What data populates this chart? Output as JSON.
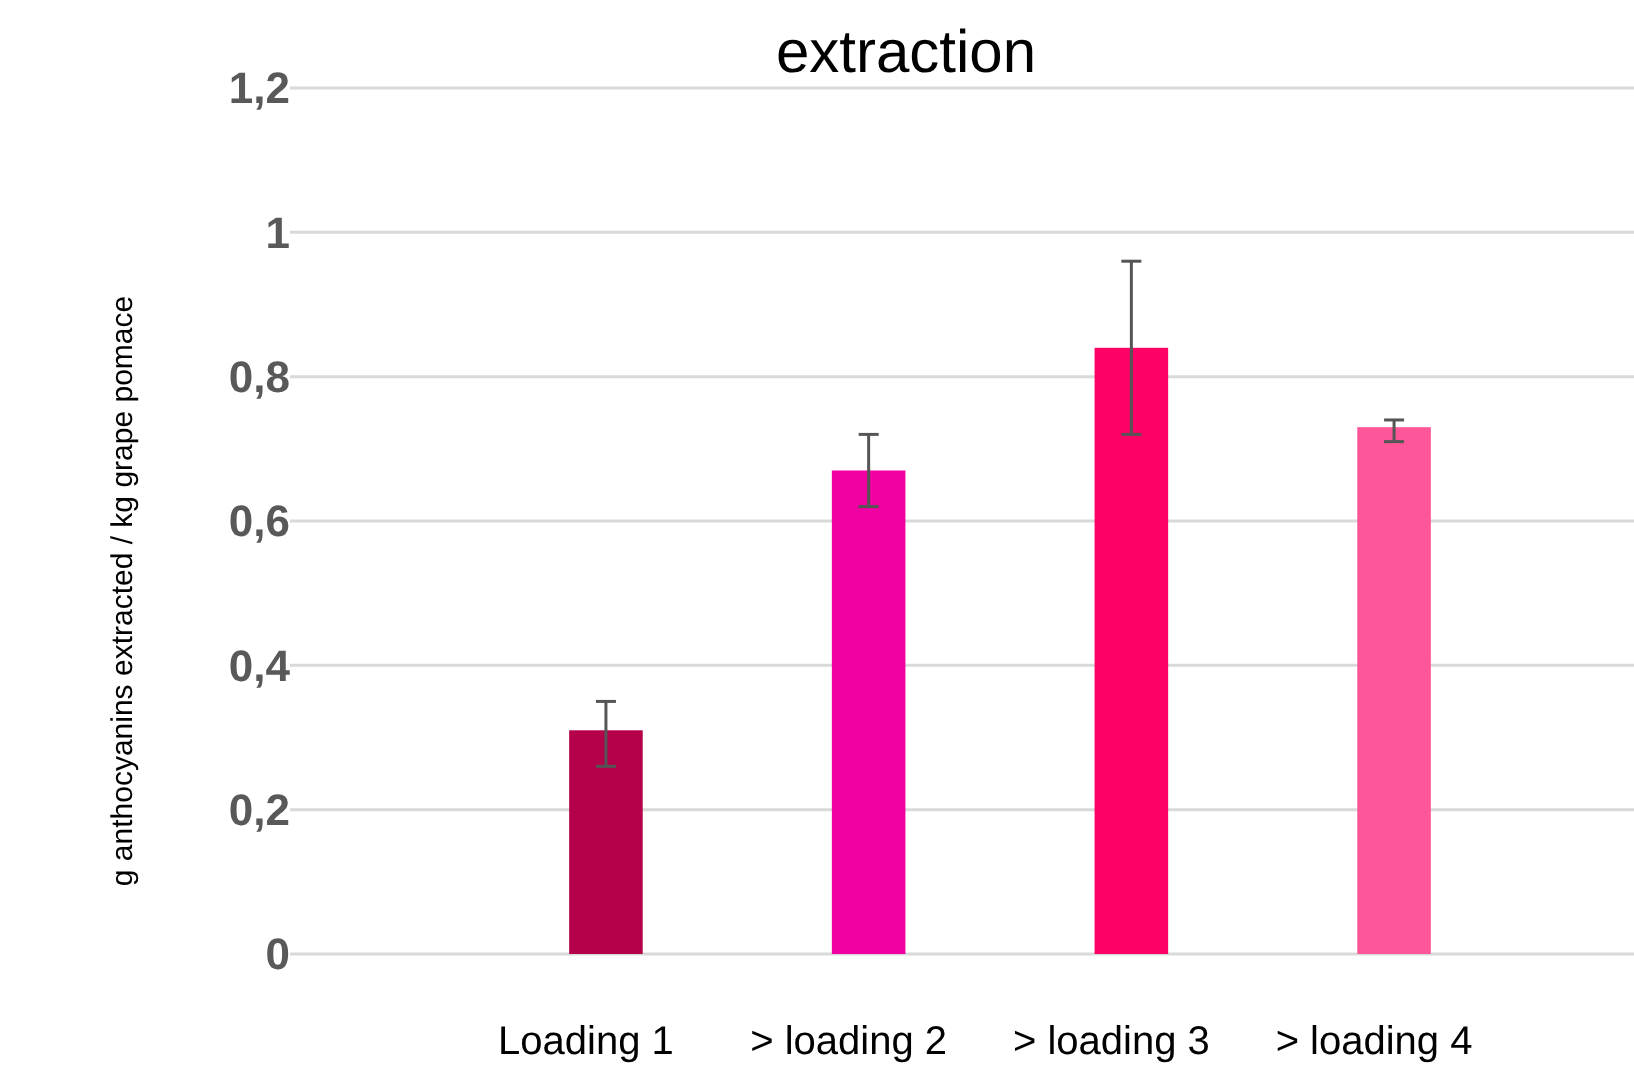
{
  "chart_data": {
    "type": "bar",
    "title": "extraction",
    "ylabel": "g anthocyanins extracted / kg grape pomace",
    "categories": [
      "Loading 1",
      "> loading 2",
      "> loading 3",
      "> loading 4"
    ],
    "values": [
      0.31,
      0.67,
      0.84,
      0.73
    ],
    "colors": [
      "#b5004a",
      "#f000a0",
      "#ff0066",
      "#ff5599"
    ],
    "errors": [
      [
        0.26,
        0.35
      ],
      [
        0.62,
        0.72
      ],
      [
        0.72,
        0.96
      ],
      [
        0.71,
        0.74
      ]
    ],
    "ylim": [
      0,
      1.2
    ],
    "yticks": [
      {
        "value": 0,
        "label": "0"
      },
      {
        "value": 0.2,
        "label": "0,2"
      },
      {
        "value": 0.4,
        "label": "0,4"
      },
      {
        "value": 0.6,
        "label": "0,6"
      },
      {
        "value": 0.8,
        "label": "0,8"
      },
      {
        "value": 1,
        "label": "1"
      },
      {
        "value": 1.2,
        "label": "1,2"
      }
    ],
    "grid": "y"
  }
}
